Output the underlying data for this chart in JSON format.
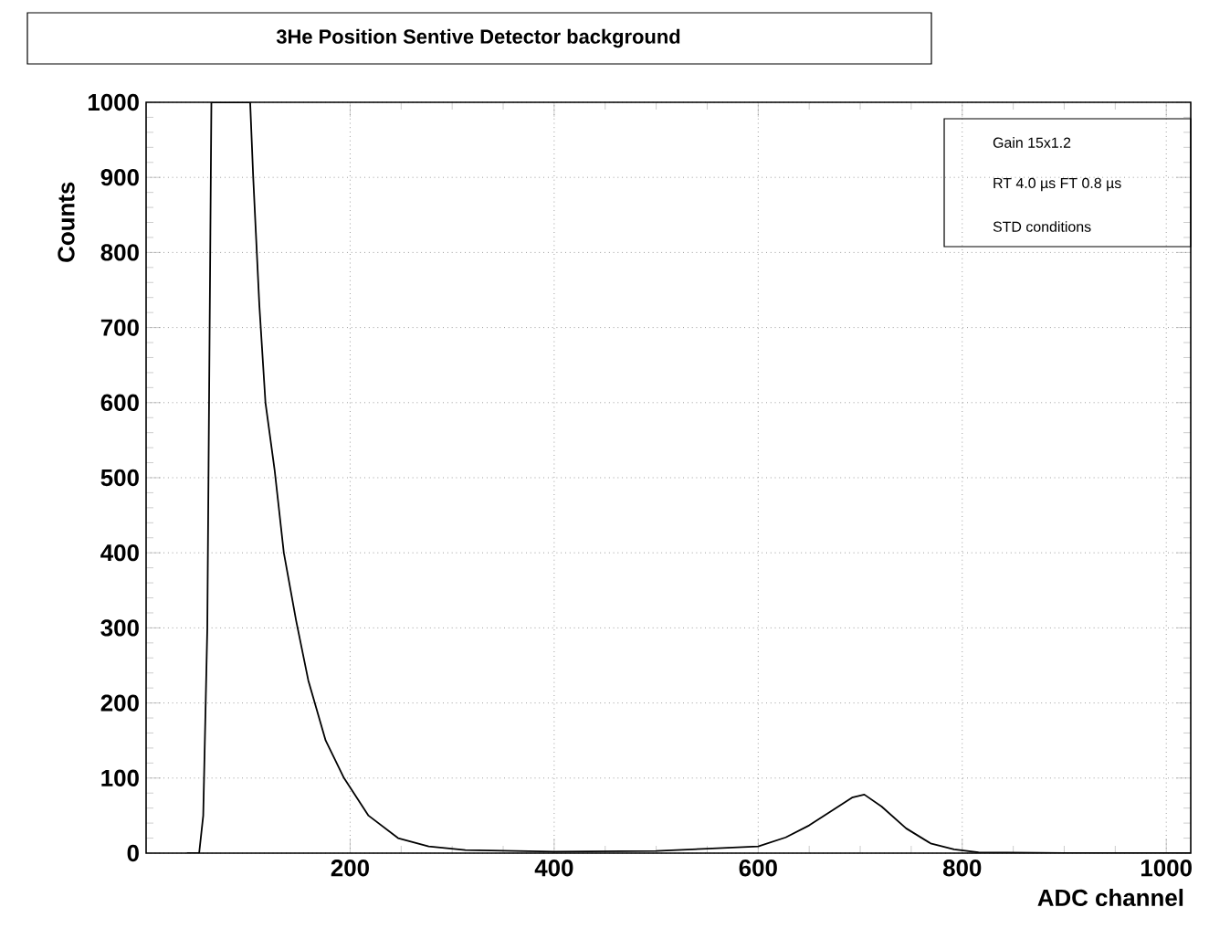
{
  "chart_data": {
    "type": "line",
    "title": "3He Position Sentive Detector background",
    "xlabel": "ADC channel",
    "ylabel": "Counts",
    "annotations": [
      "Gain 15x1.2",
      "RT 4.0 µs FT 0.8 µs",
      "STD conditions"
    ],
    "xlim": [
      0,
      1024
    ],
    "ylim": [
      0,
      1000
    ],
    "xticks": [
      200,
      400,
      600,
      800,
      1000
    ],
    "yticks": [
      0,
      100,
      200,
      300,
      400,
      500,
      600,
      700,
      800,
      900,
      1000
    ],
    "grid": true,
    "series": [
      {
        "color": "#000000",
        "x": [
          40,
          52,
          56,
          60,
          64,
          102,
          105,
          111,
          117,
          126,
          135,
          147,
          159,
          176,
          194,
          218,
          247,
          277,
          313,
          400,
          500,
          550,
          600,
          627,
          650,
          674,
          692,
          704,
          721,
          745,
          769,
          792,
          816,
          900,
          1000,
          1024
        ],
        "values": [
          0,
          0,
          50,
          300,
          1000,
          1000,
          900,
          730,
          600,
          510,
          400,
          310,
          230,
          150,
          100,
          50,
          20,
          9,
          4,
          2,
          3,
          6,
          9,
          21,
          37,
          58,
          74,
          78,
          62,
          33,
          13,
          5,
          1,
          0,
          0,
          0
        ]
      }
    ]
  }
}
